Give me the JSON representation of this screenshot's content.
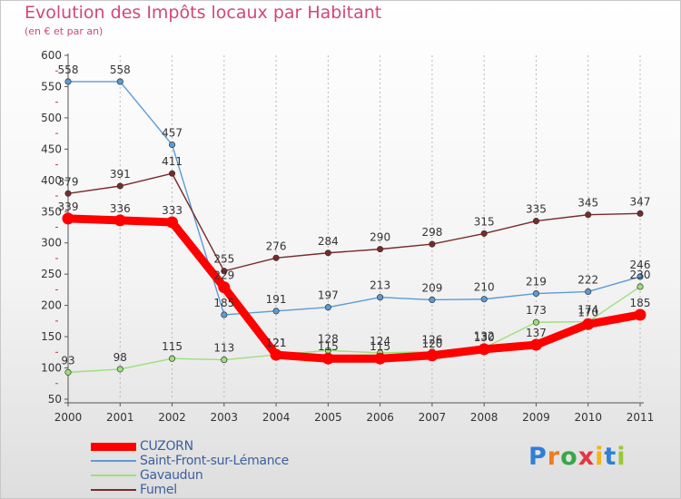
{
  "chart_data": {
    "type": "line",
    "title": "Evolution des Impôts locaux par Habitant",
    "subtitle": "(en € et par an)",
    "x": [
      "2000",
      "2001",
      "2002",
      "2003",
      "2004",
      "2005",
      "2006",
      "2007",
      "2008",
      "2009",
      "2010",
      "2011"
    ],
    "ylim": [
      50,
      600
    ],
    "yticks": [
      50,
      100,
      150,
      200,
      250,
      300,
      350,
      400,
      450,
      500,
      550,
      600
    ],
    "grid": "vertical",
    "legend_position": "bottom-left",
    "series": [
      {
        "name": "CUZORN",
        "color": "#ff0000",
        "values": [
          339,
          336,
          333,
          229,
          121,
          115,
          115,
          120,
          130,
          137,
          170,
          185
        ],
        "labels": [
          "339",
          "336",
          "333",
          "229",
          "121",
          "115",
          "115",
          "120",
          "130",
          "137",
          "170",
          "185"
        ]
      },
      {
        "name": "Saint-Front-sur-Lémance",
        "color": "#5b9bd5",
        "values": [
          558,
          558,
          457,
          185,
          191,
          197,
          213,
          209,
          210,
          219,
          222,
          246
        ],
        "labels": [
          "558",
          "558",
          "457",
          "185",
          "191",
          "197",
          "213",
          "209",
          "210",
          "219",
          "222",
          "246"
        ]
      },
      {
        "name": "Gavaudun",
        "color": "#9be07a",
        "values": [
          93,
          98,
          115,
          113,
          121,
          128,
          124,
          126,
          132,
          173,
          174,
          230
        ],
        "labels": [
          "93",
          "98",
          "115",
          "113",
          "121",
          "128",
          "124",
          "126",
          "132",
          "173",
          "174",
          "230"
        ]
      },
      {
        "name": "Fumel",
        "color": "#7a2a2a",
        "values": [
          379,
          391,
          411,
          255,
          276,
          284,
          290,
          298,
          315,
          335,
          345,
          347
        ],
        "labels": [
          "379",
          "391",
          "411",
          "255",
          "276",
          "284",
          "290",
          "298",
          "315",
          "335",
          "345",
          "347"
        ]
      }
    ]
  },
  "logo": {
    "letters": [
      "P",
      "r",
      "o",
      "x",
      "i",
      "t",
      "i"
    ]
  }
}
